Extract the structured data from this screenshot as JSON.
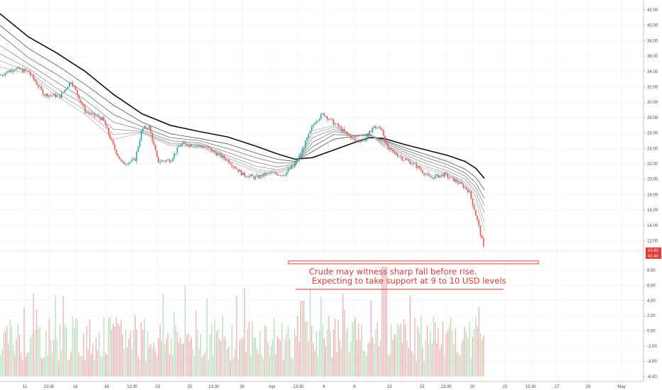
{
  "chart_data": {
    "type": "candlestick",
    "subject": "Crude oil",
    "y_axis": {
      "ticks": [
        "42.00",
        "40.00",
        "38.00",
        "36.00",
        "34.00",
        "32.00",
        "30.00",
        "28.00",
        "26.00",
        "24.00",
        "22.00",
        "20.00",
        "18.00",
        "16.00",
        "14.00",
        "12.00",
        "8.00",
        "6.00",
        "4.00",
        "2.00",
        "0.00",
        "-2.00",
        "-4.00",
        "-6.00"
      ],
      "price_range": [
        10.62,
        42.0
      ],
      "lower_pane_range": [
        -6.0,
        9.0
      ]
    },
    "x_axis": {
      "ticks": [
        "11",
        "13:30",
        "16",
        "18",
        "13:30",
        "23",
        "25",
        "13:30",
        "30",
        "Apr",
        "13:30",
        "6",
        "8",
        "13",
        "15",
        "13:30",
        "20",
        "22",
        "13:30",
        "27",
        "29",
        "May"
      ]
    },
    "price_path": [
      {
        "t": 0,
        "price": 33.5
      },
      {
        "t": 20,
        "price": 34.4
      },
      {
        "t": 40,
        "price": 34.0
      },
      {
        "t": 62,
        "price": 31.0
      },
      {
        "t": 85,
        "price": 30.8
      },
      {
        "t": 100,
        "price": 32.8
      },
      {
        "t": 120,
        "price": 28.8
      },
      {
        "t": 145,
        "price": 27.8
      },
      {
        "t": 160,
        "price": 24.2
      },
      {
        "t": 172,
        "price": 22.0
      },
      {
        "t": 190,
        "price": 22.5
      },
      {
        "t": 200,
        "price": 26.5
      },
      {
        "t": 210,
        "price": 26.8
      },
      {
        "t": 222,
        "price": 22.3
      },
      {
        "t": 240,
        "price": 22.5
      },
      {
        "t": 255,
        "price": 24.6
      },
      {
        "t": 272,
        "price": 24.4
      },
      {
        "t": 290,
        "price": 24.2
      },
      {
        "t": 320,
        "price": 22.5
      },
      {
        "t": 342,
        "price": 20.6
      },
      {
        "t": 360,
        "price": 20.2
      },
      {
        "t": 380,
        "price": 20.8
      },
      {
        "t": 400,
        "price": 20.6
      },
      {
        "t": 418,
        "price": 22.3
      },
      {
        "t": 430,
        "price": 24.8
      },
      {
        "t": 443,
        "price": 27.5
      },
      {
        "t": 455,
        "price": 28.5
      },
      {
        "t": 475,
        "price": 26.9
      },
      {
        "t": 500,
        "price": 25.0
      },
      {
        "t": 515,
        "price": 25.2
      },
      {
        "t": 525,
        "price": 26.8
      },
      {
        "t": 538,
        "price": 26.5
      },
      {
        "t": 545,
        "price": 24.0
      },
      {
        "t": 565,
        "price": 22.8
      },
      {
        "t": 585,
        "price": 21.8
      },
      {
        "t": 605,
        "price": 20.2
      },
      {
        "t": 625,
        "price": 20.6
      },
      {
        "t": 645,
        "price": 19.6
      },
      {
        "t": 660,
        "price": 18.5
      },
      {
        "t": 668,
        "price": 16.0
      },
      {
        "t": 675,
        "price": 13.5
      },
      {
        "t": 682,
        "price": 10.6
      }
    ],
    "moving_averages": [
      {
        "style": "primary",
        "color": "#111111",
        "points": [
          [
            0,
            41.5
          ],
          [
            40,
            38.5
          ],
          [
            80,
            36.4
          ],
          [
            120,
            34.0
          ],
          [
            160,
            31.0
          ],
          [
            200,
            28.5
          ],
          [
            240,
            27.0
          ],
          [
            280,
            26.2
          ],
          [
            320,
            25.5
          ],
          [
            360,
            24.3
          ],
          [
            390,
            23.3
          ],
          [
            415,
            22.6
          ],
          [
            440,
            22.8
          ],
          [
            470,
            23.8
          ],
          [
            500,
            24.8
          ],
          [
            520,
            25.4
          ],
          [
            540,
            25.3
          ],
          [
            570,
            24.5
          ],
          [
            600,
            23.8
          ],
          [
            630,
            23.1
          ],
          [
            655,
            22.3
          ],
          [
            670,
            21.4
          ],
          [
            682,
            20.1
          ]
        ]
      },
      {
        "style": "secondary",
        "color": "#555555",
        "points": [
          [
            0,
            40.0
          ],
          [
            40,
            37.0
          ],
          [
            80,
            34.8
          ],
          [
            120,
            32.3
          ],
          [
            160,
            29.6
          ],
          [
            200,
            27.4
          ],
          [
            240,
            25.9
          ],
          [
            280,
            25.3
          ],
          [
            320,
            24.6
          ],
          [
            360,
            23.4
          ],
          [
            390,
            22.6
          ],
          [
            415,
            22.3
          ],
          [
            440,
            23.6
          ],
          [
            470,
            25.2
          ],
          [
            500,
            25.6
          ],
          [
            520,
            25.7
          ],
          [
            540,
            25.1
          ],
          [
            570,
            24.1
          ],
          [
            600,
            23.2
          ],
          [
            630,
            22.3
          ],
          [
            655,
            21.3
          ],
          [
            670,
            20.2
          ],
          [
            682,
            18.6
          ]
        ]
      },
      {
        "style": "secondary",
        "color": "#707070",
        "points": [
          [
            0,
            38.8
          ],
          [
            40,
            35.8
          ],
          [
            80,
            33.6
          ],
          [
            120,
            31.2
          ],
          [
            160,
            28.4
          ],
          [
            200,
            26.8
          ],
          [
            240,
            25.4
          ],
          [
            280,
            25.0
          ],
          [
            320,
            24.0
          ],
          [
            360,
            22.8
          ],
          [
            390,
            22.1
          ],
          [
            415,
            22.1
          ],
          [
            440,
            24.2
          ],
          [
            470,
            25.8
          ],
          [
            500,
            25.7
          ],
          [
            520,
            25.8
          ],
          [
            540,
            25.0
          ],
          [
            570,
            23.8
          ],
          [
            600,
            22.8
          ],
          [
            630,
            21.9
          ],
          [
            655,
            20.8
          ],
          [
            670,
            19.5
          ],
          [
            682,
            17.5
          ]
        ]
      },
      {
        "style": "secondary",
        "color": "#888888",
        "points": [
          [
            0,
            37.4
          ],
          [
            40,
            35.0
          ],
          [
            80,
            32.6
          ],
          [
            120,
            30.3
          ],
          [
            160,
            27.4
          ],
          [
            200,
            26.4
          ],
          [
            240,
            25.0
          ],
          [
            280,
            24.7
          ],
          [
            320,
            23.5
          ],
          [
            360,
            22.2
          ],
          [
            390,
            21.6
          ],
          [
            415,
            21.9
          ],
          [
            440,
            24.8
          ],
          [
            470,
            26.2
          ],
          [
            500,
            25.7
          ],
          [
            520,
            25.9
          ],
          [
            540,
            24.8
          ],
          [
            570,
            23.5
          ],
          [
            600,
            22.4
          ],
          [
            630,
            21.5
          ],
          [
            655,
            20.4
          ],
          [
            670,
            18.9
          ],
          [
            682,
            16.6
          ]
        ]
      },
      {
        "style": "secondary",
        "color": "#9a9a9a",
        "points": [
          [
            0,
            36.3
          ],
          [
            40,
            34.4
          ],
          [
            80,
            31.8
          ],
          [
            120,
            29.6
          ],
          [
            160,
            26.5
          ],
          [
            200,
            26.2
          ],
          [
            240,
            24.7
          ],
          [
            280,
            24.5
          ],
          [
            320,
            23.1
          ],
          [
            360,
            21.7
          ],
          [
            390,
            21.2
          ],
          [
            415,
            21.7
          ],
          [
            440,
            25.4
          ],
          [
            470,
            26.5
          ],
          [
            500,
            25.6
          ],
          [
            520,
            25.9
          ],
          [
            540,
            24.6
          ],
          [
            570,
            23.2
          ],
          [
            600,
            22.0
          ],
          [
            630,
            21.1
          ],
          [
            655,
            20.0
          ],
          [
            670,
            18.3
          ],
          [
            682,
            15.6
          ]
        ]
      },
      {
        "style": "secondary",
        "color": "#aaaaaa",
        "points": [
          [
            0,
            35.4
          ],
          [
            40,
            34.0
          ],
          [
            80,
            31.2
          ],
          [
            120,
            29.0
          ],
          [
            160,
            25.8
          ],
          [
            200,
            26.1
          ],
          [
            240,
            24.5
          ],
          [
            280,
            24.4
          ],
          [
            320,
            22.8
          ],
          [
            360,
            21.3
          ],
          [
            390,
            20.9
          ],
          [
            415,
            21.6
          ],
          [
            440,
            25.9
          ],
          [
            470,
            26.8
          ],
          [
            500,
            25.5
          ],
          [
            520,
            26.0
          ],
          [
            540,
            24.4
          ],
          [
            570,
            22.9
          ],
          [
            600,
            21.6
          ],
          [
            630,
            20.8
          ],
          [
            655,
            19.6
          ],
          [
            670,
            17.7
          ],
          [
            682,
            14.4
          ]
        ]
      },
      {
        "style": "secondary",
        "color": "#bbbbbb",
        "points": [
          [
            0,
            34.6
          ],
          [
            40,
            33.7
          ],
          [
            80,
            30.8
          ],
          [
            120,
            28.4
          ],
          [
            160,
            25.2
          ],
          [
            200,
            26.0
          ],
          [
            240,
            24.3
          ],
          [
            280,
            24.3
          ],
          [
            320,
            22.5
          ],
          [
            360,
            21.0
          ],
          [
            390,
            20.7
          ],
          [
            415,
            21.5
          ],
          [
            440,
            26.3
          ],
          [
            470,
            27.0
          ],
          [
            500,
            25.4
          ],
          [
            520,
            26.0
          ],
          [
            540,
            24.2
          ],
          [
            570,
            22.7
          ],
          [
            600,
            21.3
          ],
          [
            630,
            20.6
          ],
          [
            655,
            19.3
          ],
          [
            670,
            17.1
          ],
          [
            682,
            13.3
          ]
        ]
      }
    ],
    "lower_pane": {
      "type": "bar"
    },
    "annotations": [
      {
        "kind": "text",
        "text": "Crude may witness sharp fall before rise.",
        "color": "#e53935"
      },
      {
        "kind": "text",
        "text": "Expecting to take support at 9 to 10 USD levels",
        "color": "#e53935"
      }
    ],
    "price_badges": [
      {
        "text": "10.62",
        "color": "#e53935"
      },
      {
        "text": "41:40",
        "color": "#e53935"
      }
    ],
    "colors": {
      "up": "#26a69a",
      "down": "#ef5350",
      "annotation": "#e53935",
      "grid": "#eef0f3"
    },
    "grid": true
  }
}
